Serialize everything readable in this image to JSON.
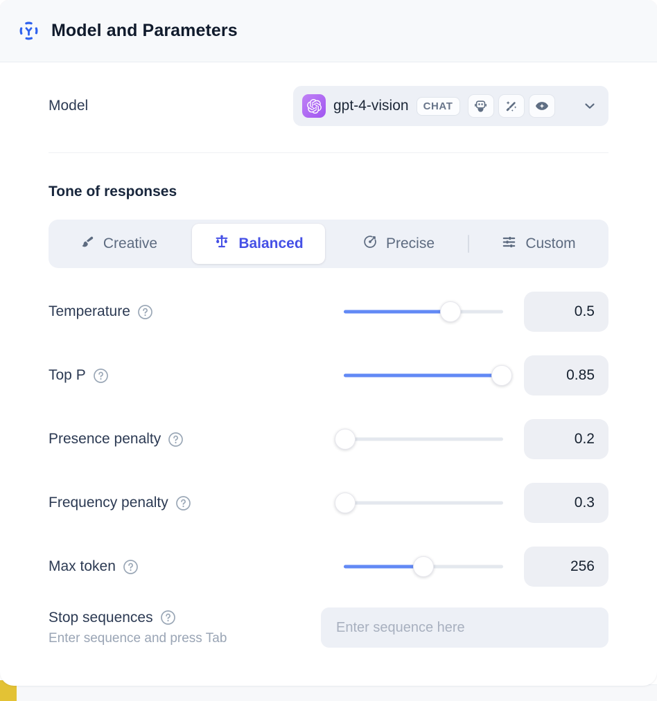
{
  "header": {
    "title": "Model and Parameters",
    "icon": "model-hub-icon",
    "accent_color": "#2f62ee"
  },
  "model_row": {
    "label": "Model",
    "name": "gpt-4-vision",
    "type_badge": "CHAT",
    "capability_icons": [
      "robot-icon",
      "magic-wand-icon",
      "vision-eye-icon"
    ],
    "provider_icon": "openai-logo",
    "provider_color": "#a862f2",
    "chevron": "chevron-down-icon"
  },
  "tone": {
    "heading": "Tone of responses",
    "options": [
      {
        "label": "Creative",
        "icon": "paintbrush-icon",
        "selected": false
      },
      {
        "label": "Balanced",
        "icon": "balance-scale-icon",
        "selected": true
      },
      {
        "label": "Precise",
        "icon": "target-icon",
        "selected": false
      },
      {
        "label": "Custom",
        "icon": "sliders-icon",
        "selected": false
      }
    ],
    "selected_color": "#4550e6"
  },
  "sliders": [
    {
      "label": "Temperature",
      "value": "0.5",
      "fill_pct": 67
    },
    {
      "label": "Top P",
      "value": "0.85",
      "fill_pct": 99
    },
    {
      "label": "Presence penalty",
      "value": "0.2",
      "fill_pct": 1
    },
    {
      "label": "Frequency penalty",
      "value": "0.3",
      "fill_pct": 1
    },
    {
      "label": "Max token",
      "value": "256",
      "fill_pct": 50
    }
  ],
  "stop_sequences": {
    "label": "Stop sequences",
    "hint": "Enter sequence and press Tab",
    "placeholder": "Enter sequence here"
  },
  "colors": {
    "slider_fill": "#6289f5",
    "slider_track": "#e4e8ee",
    "header_bg": "#f7f9fb",
    "control_bg": "#edf0f6",
    "corner_accent": "#e3c235"
  }
}
